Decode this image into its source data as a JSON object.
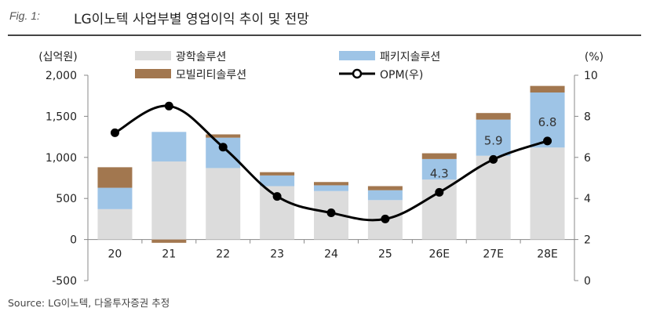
{
  "header": {
    "fig_label": "Fig. 1:",
    "title": "LG이노텍 사업부별 영업이익 추이 및 전망"
  },
  "source": "Source: LG이노텍, 다올투자증권 추정",
  "colors": {
    "optical": "#dcdcdc",
    "package": "#9ec4e6",
    "mobility": "#a2774f",
    "opm_line": "#000000",
    "axis": "#888888",
    "header_rule": "#444444"
  },
  "chart_data": {
    "type": "bar",
    "stacked": true,
    "categories": [
      "20",
      "21",
      "22",
      "23",
      "24",
      "25",
      "26E",
      "27E",
      "28E"
    ],
    "series": [
      {
        "name": "광학솔루션",
        "values": [
          370,
          950,
          870,
          650,
          590,
          480,
          730,
          1020,
          1120
        ]
      },
      {
        "name": "패키지솔루션",
        "values": [
          260,
          360,
          370,
          130,
          70,
          120,
          250,
          440,
          670
        ]
      },
      {
        "name": "모빌리티솔루션",
        "values": [
          250,
          -40,
          40,
          40,
          40,
          50,
          70,
          80,
          80
        ]
      }
    ],
    "line_series": {
      "name": "OPM(우)",
      "values": [
        7.2,
        8.5,
        6.5,
        4.1,
        3.3,
        3.0,
        4.3,
        5.9,
        6.8
      ],
      "labels": [
        "",
        "",
        "",
        "",
        "",
        "",
        "4.3",
        "5.9",
        "6.8"
      ]
    },
    "y_left": {
      "unit": "(십억원)",
      "ylim": [
        -500,
        2000
      ],
      "ticks": [
        "-500",
        "0",
        "500",
        "1,000",
        "1,500",
        "2,000"
      ],
      "tick_values": [
        -500,
        0,
        500,
        1000,
        1500,
        2000
      ]
    },
    "y_right": {
      "unit": "(%)",
      "ylim": [
        0,
        10
      ],
      "ticks": [
        "0",
        "2",
        "4",
        "6",
        "8",
        "10"
      ],
      "tick_values": [
        0,
        2,
        4,
        6,
        8,
        10
      ]
    },
    "grid": false,
    "legend_position": "top",
    "legend": [
      "광학솔루션",
      "패키지솔루션",
      "모빌리티솔루션",
      "OPM(우)"
    ]
  }
}
